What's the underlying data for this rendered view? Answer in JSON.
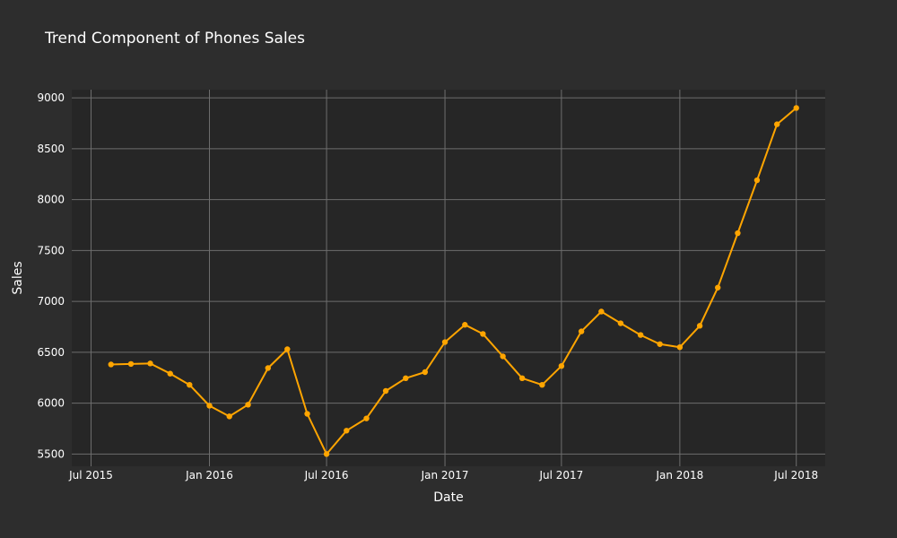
{
  "chart_data": {
    "type": "line",
    "title": "Trend Component of Phones Sales",
    "xlabel": "Date",
    "ylabel": "Sales",
    "x_range": [
      "2015-06-01",
      "2018-08-15"
    ],
    "ylim": [
      5380,
      9080
    ],
    "grid": true,
    "legend": "none",
    "x_ticks": [
      {
        "label": "Jul 2015",
        "date": "2015-07-01"
      },
      {
        "label": "Jan 2016",
        "date": "2016-01-01"
      },
      {
        "label": "Jul 2016",
        "date": "2016-07-01"
      },
      {
        "label": "Jan 2017",
        "date": "2017-01-01"
      },
      {
        "label": "Jul 2017",
        "date": "2017-07-01"
      },
      {
        "label": "Jan 2018",
        "date": "2018-01-01"
      },
      {
        "label": "Jul 2018",
        "date": "2018-07-01"
      }
    ],
    "y_ticks": [
      5500,
      6000,
      6500,
      7000,
      7500,
      8000,
      8500,
      9000
    ],
    "series": [
      {
        "color": "#ffa500",
        "x": [
          "2015-08-01",
          "2015-09-01",
          "2015-10-01",
          "2015-11-01",
          "2015-12-01",
          "2016-01-01",
          "2016-02-01",
          "2016-03-01",
          "2016-04-01",
          "2016-05-01",
          "2016-06-01",
          "2016-07-01",
          "2016-08-01",
          "2016-09-01",
          "2016-10-01",
          "2016-11-01",
          "2016-12-01",
          "2017-01-01",
          "2017-02-01",
          "2017-03-01",
          "2017-04-01",
          "2017-05-01",
          "2017-06-01",
          "2017-07-01",
          "2017-08-01",
          "2017-09-01",
          "2017-10-01",
          "2017-11-01",
          "2017-12-01",
          "2018-01-01",
          "2018-02-01",
          "2018-03-01",
          "2018-04-01",
          "2018-05-01",
          "2018-06-01",
          "2018-07-01"
        ],
        "values": [
          6380,
          6385,
          6390,
          6290,
          6180,
          5975,
          5870,
          5985,
          6345,
          6530,
          5895,
          5500,
          5730,
          5850,
          6120,
          6245,
          6305,
          6600,
          6770,
          6680,
          6460,
          6245,
          6180,
          6365,
          6705,
          6900,
          6785,
          6670,
          6580,
          6550,
          6760,
          7135,
          7670,
          8190,
          8740,
          8900
        ]
      }
    ]
  }
}
